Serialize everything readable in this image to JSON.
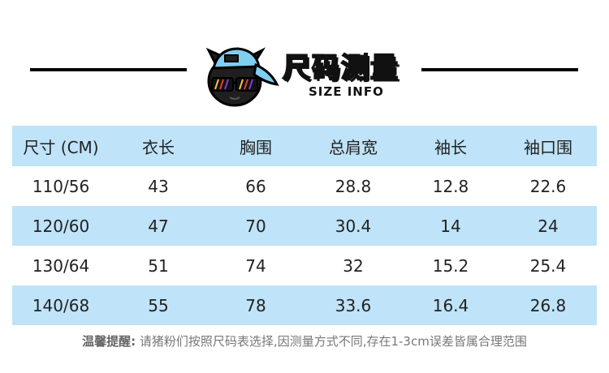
{
  "header": {
    "title_cn": "尺码测量",
    "title_en": "SIZE INFO",
    "icons": {
      "mascot": "cap-sunglasses-mascot-icon"
    },
    "colors": {
      "row_blue": "#bfe3f8",
      "rule": "#000000"
    }
  },
  "table": {
    "columns": [
      "尺寸 (CM)",
      "衣长",
      "胸围",
      "总肩宽",
      "袖长",
      "袖口围"
    ],
    "rows": [
      [
        "110/56",
        "43",
        "66",
        "28.8",
        "12.8",
        "22.6"
      ],
      [
        "120/60",
        "47",
        "70",
        "30.4",
        "14",
        "24"
      ],
      [
        "130/64",
        "51",
        "74",
        "32",
        "15.2",
        "25.4"
      ],
      [
        "140/68",
        "55",
        "78",
        "33.6",
        "16.4",
        "26.8"
      ]
    ]
  },
  "note": {
    "label": "温馨提醒:",
    "text": " 请猪粉们按照尺码表选择,因测量方式不同,存在1-3cm误差皆属合理范围"
  }
}
